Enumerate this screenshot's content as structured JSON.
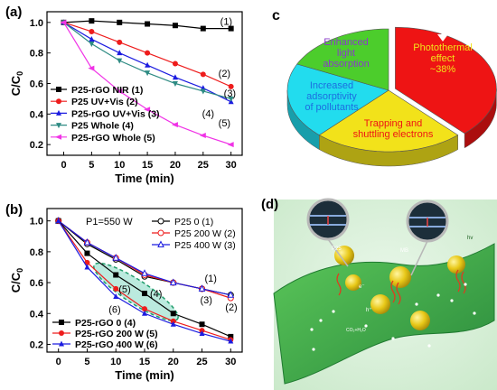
{
  "colors": {
    "black": "#000000",
    "red": "#ee1c1c",
    "blue": "#1c1ce0",
    "teal": "#2e8b83",
    "magenta": "#f033e6",
    "pie_green": "#4ccd2c",
    "pie_cyan": "#22dcee",
    "pie_yellow": "#f2e21a",
    "pie_red": "#ee1414",
    "dashed_ellipse": "#1f9c6a",
    "sheet_green": "#3cae4a"
  },
  "panels": {
    "a": {
      "label": "(a)"
    },
    "b": {
      "label": "(b)",
      "annotation": "P1=550 W"
    },
    "c": {
      "label": "c"
    },
    "d": {
      "label": "(d)",
      "small_labels": [
        "P25",
        "MB",
        "e⁻",
        "h⁺",
        "hv",
        "CO₂+H₂O"
      ]
    }
  },
  "chart_data": [
    {
      "type": "line",
      "panel": "a",
      "xlabel": "Time (min)",
      "ylabel": "C/C0",
      "xlim": [
        -3,
        32
      ],
      "ylim": [
        0.13,
        1.07
      ],
      "xticks": [
        0,
        5,
        10,
        15,
        20,
        25,
        30
      ],
      "yticks": [
        0.2,
        0.4,
        0.6,
        0.8,
        1.0
      ],
      "x": [
        0,
        5,
        10,
        15,
        20,
        25,
        30
      ],
      "legend_position": "bottom-left",
      "series": [
        {
          "name": "P25-rGO NIR (1)",
          "values": [
            1.0,
            1.01,
            1.0,
            0.99,
            0.98,
            0.96,
            0.96
          ],
          "color": "#000000",
          "marker": "square",
          "tag": "(1)"
        },
        {
          "name": "P25 UV+Vis (2)",
          "values": [
            1.0,
            0.94,
            0.87,
            0.8,
            0.73,
            0.66,
            0.58
          ],
          "color": "#ee1c1c",
          "marker": "circle",
          "tag": "(2)"
        },
        {
          "name": "P25-rGO UV+Vis (3)",
          "values": [
            1.0,
            0.89,
            0.8,
            0.72,
            0.64,
            0.57,
            0.48
          ],
          "color": "#1c1ce0",
          "marker": "triangle-up",
          "tag": "(3)"
        },
        {
          "name": "P25 Whole (4)",
          "values": [
            1.0,
            0.86,
            0.75,
            0.67,
            0.6,
            0.55,
            0.5
          ],
          "color": "#2e8b83",
          "marker": "triangle-down",
          "tag": "(4)"
        },
        {
          "name": "P25-rGO Whole (5)",
          "values": [
            1.0,
            0.7,
            0.55,
            0.43,
            0.33,
            0.26,
            0.2
          ],
          "color": "#f033e6",
          "marker": "diamond-left",
          "tag": "(5)"
        }
      ]
    },
    {
      "type": "line",
      "panel": "b",
      "xlabel": "Time (min)",
      "ylabel": "C/C0",
      "xlim": [
        -2,
        32
      ],
      "ylim": [
        0.15,
        1.08
      ],
      "xticks": [
        0,
        5,
        10,
        15,
        20,
        25,
        30
      ],
      "yticks": [
        0.2,
        0.4,
        0.6,
        0.8,
        1.0
      ],
      "x": [
        0,
        5,
        10,
        15,
        20,
        25,
        30
      ],
      "series": [
        {
          "name": "P25 0 (1)",
          "values": [
            1.0,
            0.85,
            0.75,
            0.64,
            0.6,
            0.56,
            0.52
          ],
          "color": "#000000",
          "marker": "open-circle",
          "tag": "(1)",
          "legend_group": "top"
        },
        {
          "name": "P25 200 W (2)",
          "values": [
            1.0,
            0.86,
            0.76,
            0.65,
            0.6,
            0.56,
            0.5
          ],
          "color": "#ee1c1c",
          "marker": "open-circle",
          "tag": "(2)",
          "legend_group": "top"
        },
        {
          "name": "P25 400 W (3)",
          "values": [
            1.0,
            0.86,
            0.76,
            0.66,
            0.6,
            0.56,
            0.52
          ],
          "color": "#1c1ce0",
          "marker": "open-triangle",
          "tag": "(3)",
          "legend_group": "top"
        },
        {
          "name": "P25-rGO 0 (4)",
          "values": [
            1.0,
            0.79,
            0.65,
            0.53,
            0.4,
            0.33,
            0.25
          ],
          "color": "#000000",
          "marker": "square",
          "tag": "(4)",
          "legend_group": "bottom"
        },
        {
          "name": "P25-rGO 200 W (5)",
          "values": [
            1.0,
            0.73,
            0.56,
            0.43,
            0.35,
            0.29,
            0.23
          ],
          "color": "#ee1c1c",
          "marker": "circle",
          "tag": "(5)",
          "legend_group": "bottom"
        },
        {
          "name": "P25-rGO 400 W (6)",
          "values": [
            1.0,
            0.7,
            0.51,
            0.4,
            0.33,
            0.27,
            0.22
          ],
          "color": "#1c1ce0",
          "marker": "triangle-up",
          "tag": "(6)",
          "legend_group": "bottom"
        }
      ]
    },
    {
      "type": "pie",
      "panel": "c",
      "labels": [
        "Photothermal effect ~38%",
        "Trapping and shuttling electrons",
        "Increased adsorptivity of pollutants",
        "Enhanced light absorption"
      ],
      "label_lines": [
        [
          "Photothermal",
          "effect",
          "~38%"
        ],
        [
          "Trapping and",
          "shuttling electrons"
        ],
        [
          "Increased",
          "adsorptivity",
          "of pollutants"
        ],
        [
          "Enhanced",
          "light",
          "absorption"
        ]
      ],
      "values": [
        38,
        24,
        20,
        18
      ],
      "colors": [
        "#ee1414",
        "#f2e21a",
        "#22dcee",
        "#4ccd2c"
      ],
      "label_colors": [
        "#f2e21a",
        "#ee1414",
        "#1c6ee0",
        "#8a3cc8"
      ],
      "exploded": [
        true,
        false,
        false,
        false
      ]
    }
  ]
}
